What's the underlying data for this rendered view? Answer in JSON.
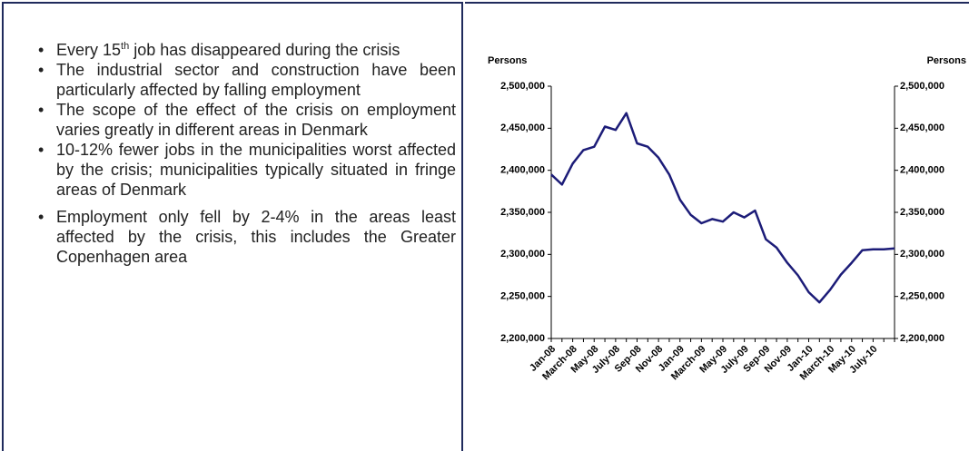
{
  "bullets": [
    [
      "Every 15",
      "th",
      " job has disappeared during the crisis"
    ],
    "The industrial sector and construction have been particularly affected by falling employment",
    "The scope of the effect of the crisis on employment varies greatly in different areas in Denmark",
    "10-12% fewer jobs in the municipalities worst affected by the crisis; municipalities typically situated in fringe areas of Denmark",
    "Employment only fell by 2-4% in the areas least affected by the crisis, this includes the Greater Copenhagen area"
  ],
  "chart_data": {
    "type": "line",
    "y_label": "Persons",
    "y2_label": "Persons",
    "categories": [
      "Jan-08",
      null,
      "March-08",
      null,
      "May-08",
      null,
      "July-08",
      null,
      "Sep-08",
      null,
      "Nov-08",
      null,
      "Jan-09",
      null,
      "March-09",
      null,
      "May-09",
      null,
      "July-09",
      null,
      "Sep-09",
      null,
      "Nov-09",
      null,
      "Jan-10",
      null,
      "March-10",
      null,
      "May-10",
      null,
      "July-10",
      null,
      null
    ],
    "series": [
      {
        "color": "#1c1c78",
        "values": [
          2395000,
          2383000,
          2408000,
          2424000,
          2428000,
          2452000,
          2448000,
          2468000,
          2432000,
          2428000,
          2415000,
          2395000,
          2365000,
          2347000,
          2337000,
          2342000,
          2339000,
          2350000,
          2344000,
          2352000,
          2318000,
          2308000,
          2290000,
          2275000,
          2255000,
          2243000,
          2258000,
          2276000,
          2290000,
          2305000,
          2306000,
          2306000,
          2307000
        ]
      }
    ],
    "ylim": [
      2200000,
      2500000
    ],
    "yticks": [
      {
        "value": 2200000,
        "label": "2,200,000"
      },
      {
        "value": 2250000,
        "label": "2,250,000"
      },
      {
        "value": 2300000,
        "label": "2,300,000"
      },
      {
        "value": 2350000,
        "label": "2,350,000"
      },
      {
        "value": 2400000,
        "label": "2,400,000"
      },
      {
        "value": 2450000,
        "label": "2,450,000"
      },
      {
        "value": 2500000,
        "label": "2,500,000"
      }
    ],
    "y2lim": [
      2200000,
      2500000
    ],
    "y2ticks": [
      {
        "value": 2200000,
        "label": "2,200,000"
      },
      {
        "value": 2250000,
        "label": "2,250,000"
      },
      {
        "value": 2300000,
        "label": "2,300,000"
      },
      {
        "value": 2350000,
        "label": "2,350,000"
      },
      {
        "value": 2400000,
        "label": "2,400,000"
      },
      {
        "value": 2450000,
        "label": "2,450,000"
      },
      {
        "value": 2500000,
        "label": "2,500,000"
      }
    ],
    "grid": false
  }
}
